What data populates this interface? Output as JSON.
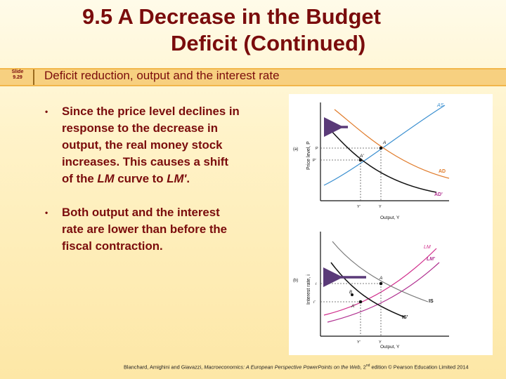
{
  "slide": {
    "title_line1": "9.5  A Decrease in the Budget",
    "title_line2": "Deficit (Continued)",
    "slide_label": "Slide",
    "slide_number": "9.29",
    "subtitle": "Deficit reduction, output and the interest rate"
  },
  "bullets": [
    {
      "text_before": "Since the price level declines in response to the decrease in output, the real money stock increases. This causes a shift of the ",
      "em1": "LM",
      "text_mid": " curve to ",
      "em2": "LM'",
      "text_after": "."
    },
    {
      "text": "Both output and the interest rate are lower than before the fiscal contraction."
    }
  ],
  "figure": {
    "panel_a": {
      "tag": "(a)",
      "ylabel": "Price level, P",
      "xlabel": "Output, Y",
      "curve_as": "AS",
      "curve_ad": "AD",
      "curve_ad2": "AD'",
      "point_a": "A",
      "point_a2": "A'",
      "p_label": "P",
      "p2_label": "P'",
      "y2_label": "Y'",
      "y_label": "Y"
    },
    "panel_b": {
      "tag": "(b)",
      "ylabel": "Interest rate, i",
      "xlabel": "Output, Y",
      "curve_lm": "LM",
      "curve_lm2": "LM'",
      "curve_is": "IS",
      "curve_is2": "IS'",
      "point_a": "A",
      "point_b": "B",
      "point_a2": "A'",
      "i_label": "i",
      "i2_label": "i'",
      "y2_label": "Y'",
      "y_label": "Y"
    },
    "colors": {
      "as": "#3a8fd0",
      "ad": "#e07b2a",
      "ad2": "#111111",
      "lm": "#d02a8a",
      "lm2": "#b03090",
      "is": "#111111",
      "arrow": "#5a3a78"
    }
  },
  "footer": {
    "authors": "Blanchard, Amighini and Giavazzi, ",
    "book": "Macroeconomics: A European Perspective PowerPoints on the Web",
    "edition_pre": ", 2",
    "edition_sup": "nd",
    "edition_post": " edition © Pearson Education Limited 2014"
  }
}
